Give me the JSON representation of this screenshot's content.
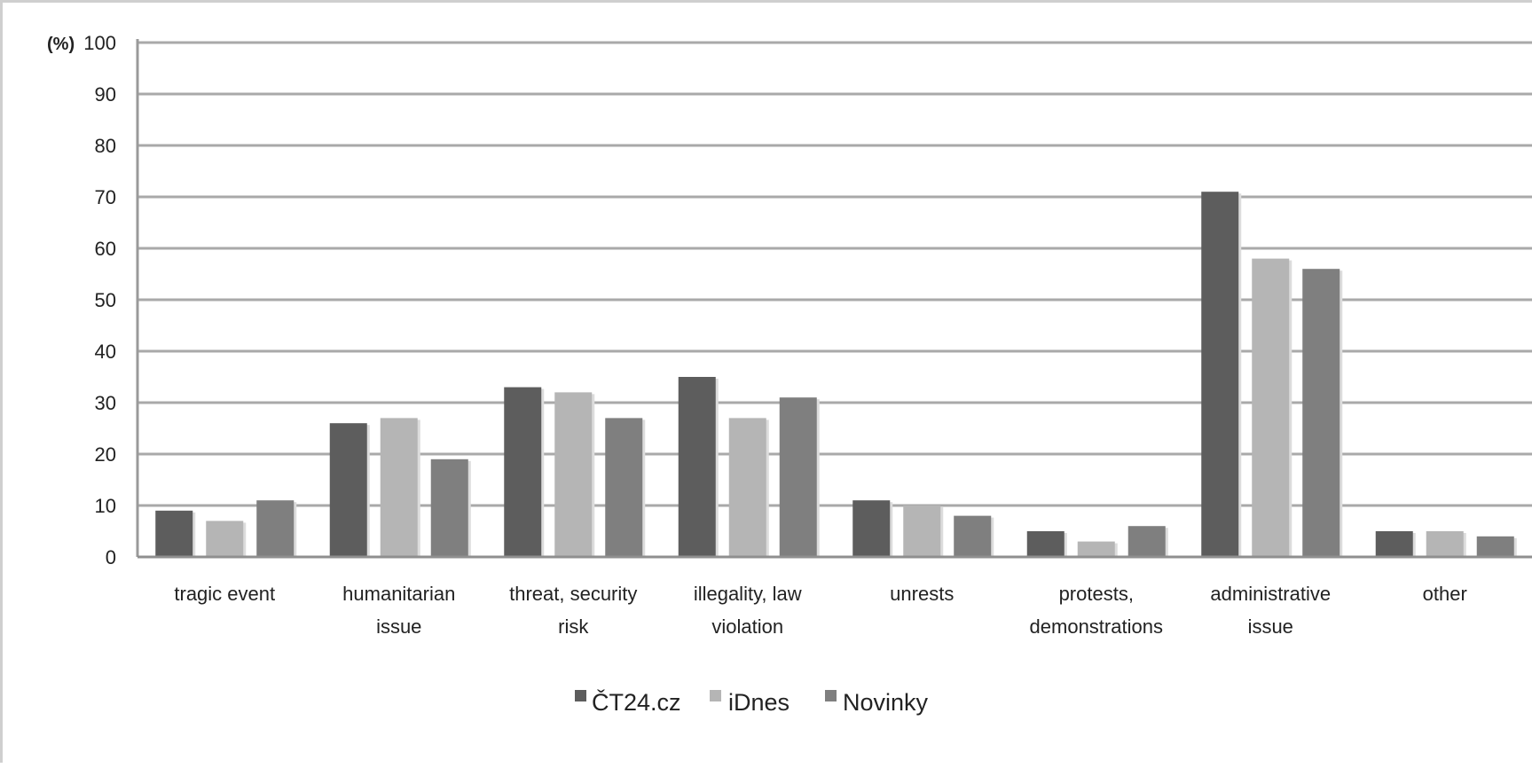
{
  "chart_data": {
    "type": "bar",
    "ylabel": "(%)",
    "ylim": [
      0,
      100
    ],
    "yticks": [
      "0",
      "10",
      "20",
      "30",
      "40",
      "50",
      "60",
      "70",
      "80",
      "90",
      "100"
    ],
    "categories": [
      [
        "tragic event"
      ],
      [
        "humanitarian",
        "issue"
      ],
      [
        "threat, security",
        "risk"
      ],
      [
        "illegality, law",
        "violation"
      ],
      [
        "unrests"
      ],
      [
        "protests,",
        "demonstrations"
      ],
      [
        "administrative",
        "issue"
      ],
      [
        "other"
      ]
    ],
    "series": [
      {
        "name": "ČT24.cz",
        "color": "#5d5d5d",
        "values": [
          9,
          26,
          33,
          35,
          11,
          5,
          71,
          5
        ]
      },
      {
        "name": "iDnes",
        "color": "#b5b5b5",
        "values": [
          7,
          27,
          32,
          27,
          10,
          3,
          58,
          5
        ]
      },
      {
        "name": "Novinky",
        "color": "#7f7f7f",
        "values": [
          11,
          19,
          27,
          31,
          8,
          6,
          56,
          4
        ]
      }
    ],
    "grid": true,
    "legend_position": "bottom"
  }
}
